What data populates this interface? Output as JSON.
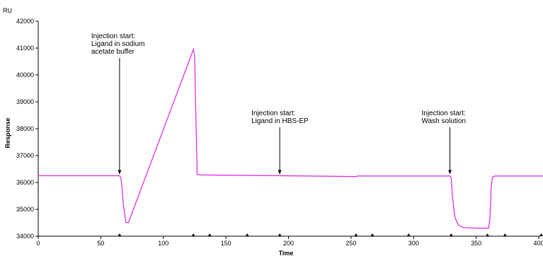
{
  "chart_data": {
    "type": "line",
    "unit_label": "RU",
    "xlabel": "Time",
    "ylabel": "Response",
    "xlim": [
      0,
      407
    ],
    "ylim": [
      34000,
      42000
    ],
    "xticks": [
      0,
      50,
      100,
      150,
      200,
      250,
      300,
      350,
      400
    ],
    "yticks": [
      34000,
      35000,
      36000,
      37000,
      38000,
      39000,
      40000,
      41000,
      42000
    ],
    "line_color": "#e020e0",
    "series": [
      {
        "x": [
          0,
          65,
          66,
          67,
          68,
          70,
          72,
          124,
          125,
          126,
          127,
          130,
          195,
          254,
          255,
          329,
          330,
          331,
          333,
          336,
          340,
          350,
          360,
          361,
          362,
          363,
          365,
          405
        ],
        "y": [
          36250,
          36250,
          36180,
          35800,
          35200,
          34520,
          34500,
          40950,
          40700,
          38500,
          36300,
          36280,
          36250,
          36220,
          36240,
          36240,
          36180,
          35500,
          34700,
          34400,
          34320,
          34300,
          34300,
          34700,
          35800,
          36200,
          36240,
          36240
        ]
      }
    ],
    "annotations": [
      {
        "lines": [
          "Injection start:",
          "Ligand in sodium",
          "acetate buffer"
        ],
        "x": 65,
        "y": 36250
      },
      {
        "lines": [
          "Injection start:",
          "Ligand in HBS-EP"
        ],
        "x": 193,
        "y": 36250
      },
      {
        "lines": [
          "Injection start:",
          "Wash solution"
        ],
        "x": 329,
        "y": 36250
      }
    ],
    "markers_x": [
      65,
      124,
      137,
      167,
      193,
      254,
      267,
      296,
      330,
      359,
      373,
      402,
      405
    ]
  }
}
